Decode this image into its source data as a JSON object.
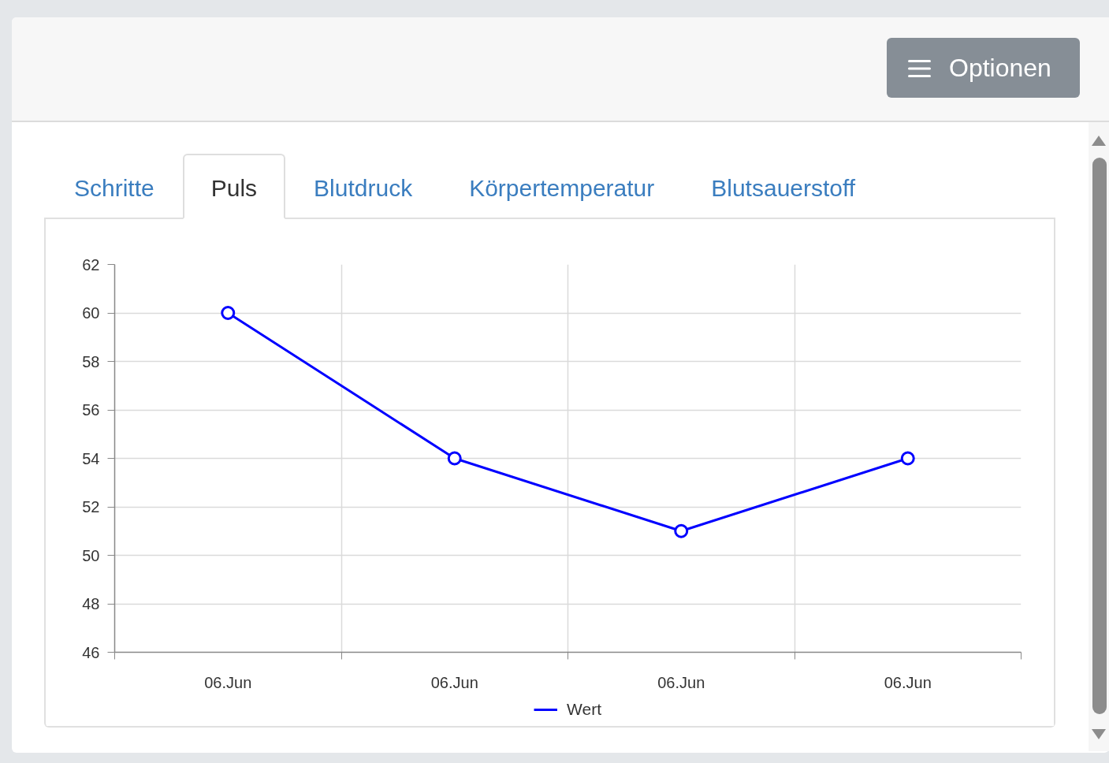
{
  "chart_data": {
    "type": "line",
    "categories": [
      "06.Jun",
      "06.Jun",
      "06.Jun",
      "06.Jun"
    ],
    "series": [
      {
        "name": "Wert",
        "color": "#0000ff",
        "values": [
          60,
          54,
          51,
          54
        ]
      }
    ],
    "ylim": [
      46,
      62
    ],
    "yticks": [
      46,
      48,
      50,
      52,
      54,
      56,
      58,
      60,
      62
    ],
    "grid": true,
    "legend": "bottom",
    "marker": "circle",
    "line_style": "solid",
    "annotations": [
      "Optionen",
      "Schritte",
      "Puls",
      "Blutdruck",
      "Körpertemperatur",
      "Blutsauerstoff"
    ]
  }
}
